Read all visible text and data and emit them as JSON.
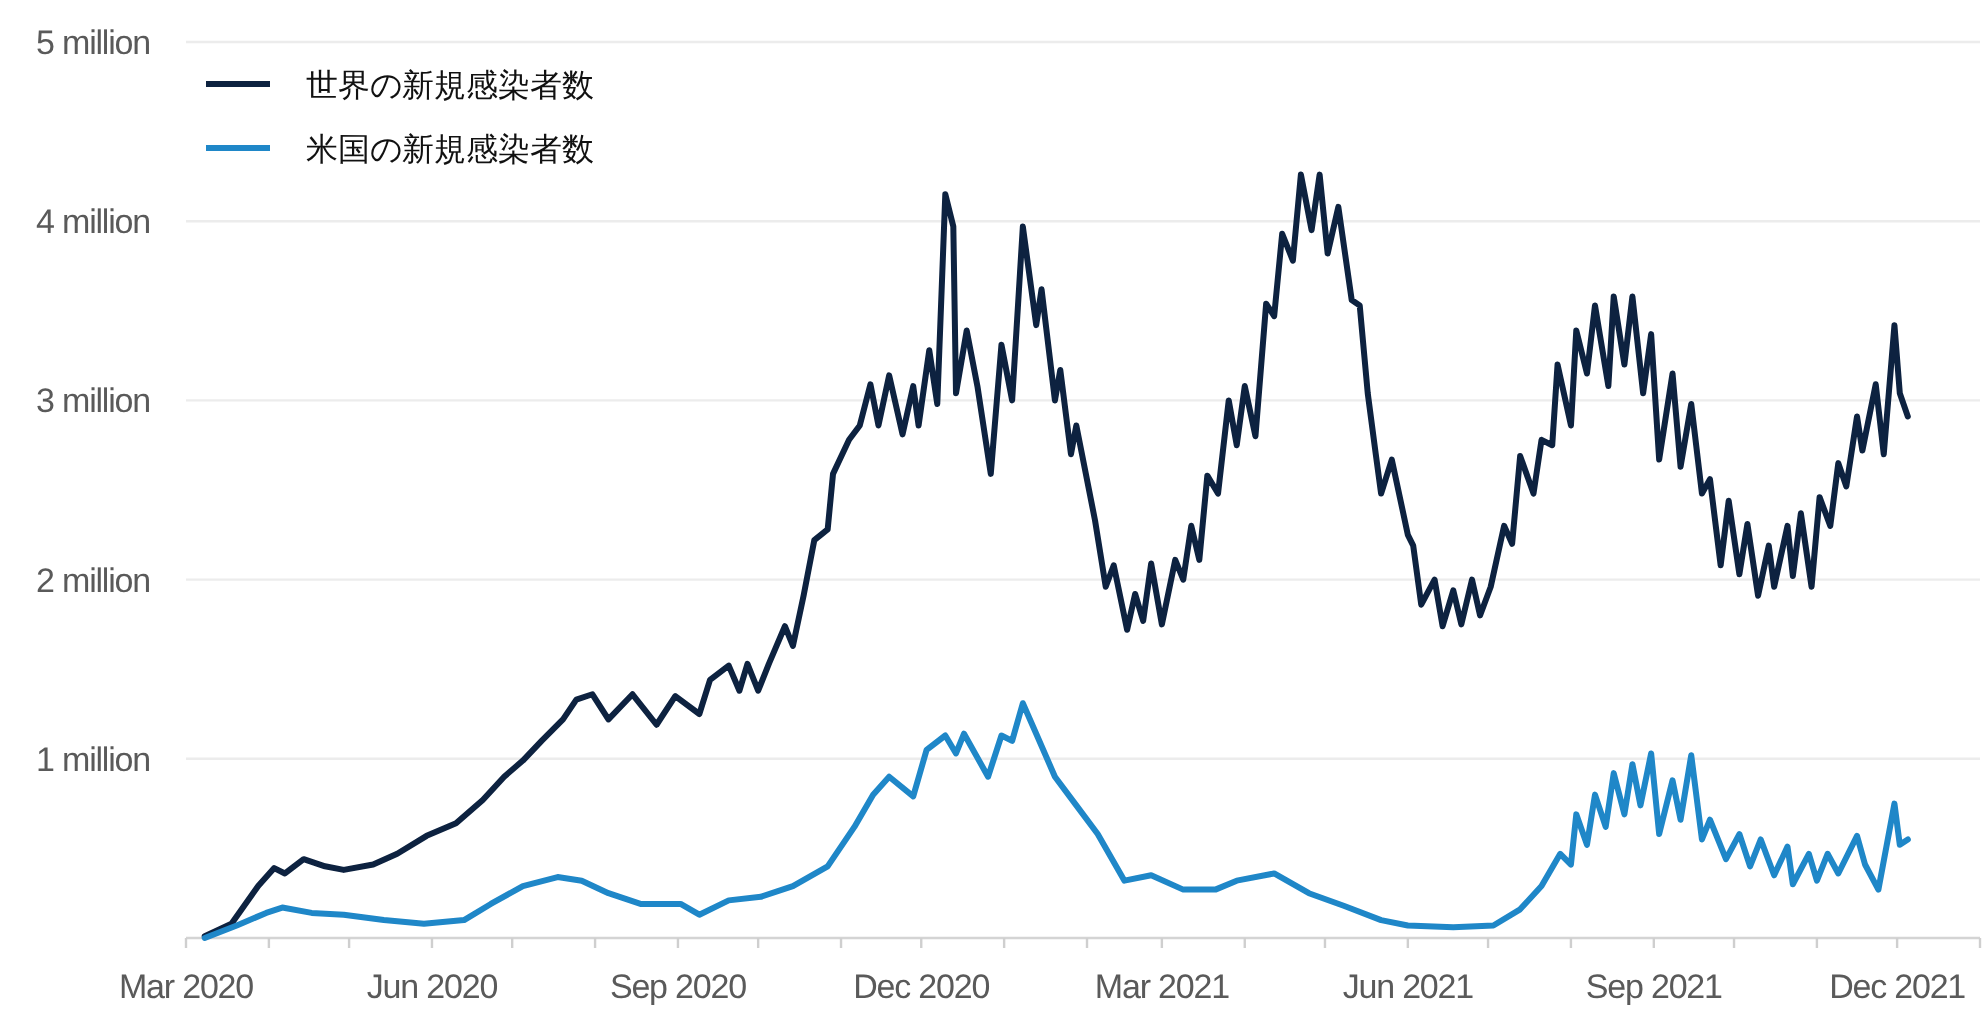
{
  "chart_data": {
    "type": "line",
    "xlim": [
      "2020-03-01",
      "2022-01-01"
    ],
    "ylim": [
      0,
      5000000
    ],
    "xticks": [
      {
        "value": "2020-03-01",
        "label": "Mar 2020"
      },
      {
        "value": "2020-04-01",
        "label": null
      },
      {
        "value": "2020-05-01",
        "label": null
      },
      {
        "value": "2020-06-01",
        "label": "Jun 2020"
      },
      {
        "value": "2020-07-01",
        "label": null
      },
      {
        "value": "2020-08-01",
        "label": null
      },
      {
        "value": "2020-09-01",
        "label": "Sep 2020"
      },
      {
        "value": "2020-10-01",
        "label": null
      },
      {
        "value": "2020-11-01",
        "label": null
      },
      {
        "value": "2020-12-01",
        "label": "Dec 2020"
      },
      {
        "value": "2021-01-01",
        "label": null
      },
      {
        "value": "2021-02-01",
        "label": null
      },
      {
        "value": "2021-03-01",
        "label": "Mar 2021"
      },
      {
        "value": "2021-04-01",
        "label": null
      },
      {
        "value": "2021-05-01",
        "label": null
      },
      {
        "value": "2021-06-01",
        "label": "Jun 2021"
      },
      {
        "value": "2021-07-01",
        "label": null
      },
      {
        "value": "2021-08-01",
        "label": null
      },
      {
        "value": "2021-09-01",
        "label": "Sep 2021"
      },
      {
        "value": "2021-10-01",
        "label": null
      },
      {
        "value": "2021-11-01",
        "label": null
      },
      {
        "value": "2021-12-01",
        "label": "Dec 2021"
      },
      {
        "value": "2022-01-01",
        "label": null
      }
    ],
    "yticks": [
      {
        "value": 1000000,
        "label": "1 million"
      },
      {
        "value": 2000000,
        "label": "2 million"
      },
      {
        "value": 3000000,
        "label": "3 million"
      },
      {
        "value": 4000000,
        "label": "4 million"
      },
      {
        "value": 5000000,
        "label": "5 million"
      }
    ],
    "grid": "y",
    "legend": "top left",
    "series": [
      {
        "name": "世界の新規感染者数",
        "color": "#0d2240",
        "x": [
          "2020-03-08",
          "2020-03-18",
          "2020-03-28",
          "2020-04-03",
          "2020-04-07",
          "2020-04-14",
          "2020-04-22",
          "2020-04-29",
          "2020-05-10",
          "2020-05-19",
          "2020-05-30",
          "2020-06-10",
          "2020-06-20",
          "2020-06-28",
          "2020-07-05",
          "2020-07-12",
          "2020-07-20",
          "2020-07-25",
          "2020-07-31",
          "2020-08-06",
          "2020-08-15",
          "2020-08-24",
          "2020-08-31",
          "2020-09-09",
          "2020-09-13",
          "2020-09-20",
          "2020-09-24",
          "2020-09-27",
          "2020-10-01",
          "2020-10-05",
          "2020-10-11",
          "2020-10-14",
          "2020-10-18",
          "2020-10-22",
          "2020-10-27",
          "2020-10-29",
          "2020-11-04",
          "2020-11-08",
          "2020-11-12",
          "2020-11-15",
          "2020-11-19",
          "2020-11-24",
          "2020-11-28",
          "2020-11-30",
          "2020-12-04",
          "2020-12-07",
          "2020-12-10",
          "2020-12-13",
          "2020-12-14",
          "2020-12-18",
          "2020-12-22",
          "2020-12-27",
          "2020-12-31",
          "2021-01-04",
          "2021-01-08",
          "2021-01-13",
          "2021-01-15",
          "2021-01-20",
          "2021-01-22",
          "2021-01-26",
          "2021-01-28",
          "2021-02-04",
          "2021-02-08",
          "2021-02-11",
          "2021-02-16",
          "2021-02-19",
          "2021-02-22",
          "2021-02-25",
          "2021-03-01",
          "2021-03-06",
          "2021-03-09",
          "2021-03-12",
          "2021-03-15",
          "2021-03-18",
          "2021-03-22",
          "2021-03-26",
          "2021-03-29",
          "2021-04-01",
          "2021-04-05",
          "2021-04-09",
          "2021-04-12",
          "2021-04-15",
          "2021-04-19",
          "2021-04-22",
          "2021-04-26",
          "2021-04-29",
          "2021-05-02",
          "2021-05-06",
          "2021-05-11",
          "2021-05-14",
          "2021-05-17",
          "2021-05-20",
          "2021-05-22",
          "2021-05-26",
          "2021-06-01",
          "2021-06-03",
          "2021-06-06",
          "2021-06-11",
          "2021-06-14",
          "2021-06-18",
          "2021-06-21",
          "2021-06-25",
          "2021-06-28",
          "2021-07-02",
          "2021-07-07",
          "2021-07-10",
          "2021-07-13",
          "2021-07-18",
          "2021-07-21",
          "2021-07-25",
          "2021-07-27",
          "2021-08-01",
          "2021-08-03",
          "2021-08-07",
          "2021-08-10",
          "2021-08-15",
          "2021-08-17",
          "2021-08-21",
          "2021-08-24",
          "2021-08-28",
          "2021-08-31",
          "2021-09-03",
          "2021-09-08",
          "2021-09-11",
          "2021-09-15",
          "2021-09-19",
          "2021-09-22",
          "2021-09-26",
          "2021-09-29",
          "2021-10-03",
          "2021-10-06",
          "2021-10-10",
          "2021-10-14",
          "2021-10-16",
          "2021-10-21",
          "2021-10-23",
          "2021-10-26",
          "2021-10-30",
          "2021-11-02",
          "2021-11-06",
          "2021-11-09",
          "2021-11-12",
          "2021-11-16",
          "2021-11-18",
          "2021-11-23",
          "2021-11-26",
          "2021-11-30",
          "2021-12-02",
          "2021-12-05"
        ],
        "values": [
          10000,
          80000,
          290000,
          390000,
          360000,
          440000,
          400000,
          380000,
          410000,
          470000,
          570000,
          640000,
          770000,
          900000,
          990000,
          1100000,
          1220000,
          1330000,
          1360000,
          1220000,
          1360000,
          1190000,
          1350000,
          1250000,
          1440000,
          1520000,
          1380000,
          1530000,
          1380000,
          1530000,
          1740000,
          1630000,
          1910000,
          2220000,
          2280000,
          2590000,
          2780000,
          2860000,
          3090000,
          2860000,
          3140000,
          2810000,
          3080000,
          2860000,
          3280000,
          2980000,
          4150000,
          3970000,
          3040000,
          3390000,
          3080000,
          2590000,
          3310000,
          3000000,
          3970000,
          3420000,
          3620000,
          3000000,
          3170000,
          2700000,
          2860000,
          2330000,
          1960000,
          2080000,
          1720000,
          1920000,
          1770000,
          2090000,
          1750000,
          2110000,
          2000000,
          2300000,
          2110000,
          2580000,
          2480000,
          3000000,
          2750000,
          3080000,
          2800000,
          3540000,
          3470000,
          3930000,
          3780000,
          4260000,
          3950000,
          4260000,
          3820000,
          4080000,
          3560000,
          3530000,
          3040000,
          2700000,
          2480000,
          2670000,
          2250000,
          2190000,
          1860000,
          2000000,
          1740000,
          1940000,
          1750000,
          2000000,
          1800000,
          1960000,
          2300000,
          2200000,
          2690000,
          2480000,
          2780000,
          2750000,
          3200000,
          2860000,
          3390000,
          3150000,
          3530000,
          3080000,
          3580000,
          3200000,
          3580000,
          3040000,
          3370000,
          2670000,
          3150000,
          2630000,
          2980000,
          2480000,
          2560000,
          2080000,
          2440000,
          2030000,
          2310000,
          1910000,
          2190000,
          1960000,
          2300000,
          2020000,
          2370000,
          1960000,
          2460000,
          2300000,
          2650000,
          2520000,
          2910000,
          2720000,
          3090000,
          2700000,
          3420000,
          3040000,
          2910000
        ]
      },
      {
        "name": "米国の新規感染者数",
        "color": "#1f87c8",
        "x": [
          "2020-03-08",
          "2020-03-20",
          "2020-03-31",
          "2020-04-06",
          "2020-04-17",
          "2020-04-29",
          "2020-05-14",
          "2020-05-29",
          "2020-06-13",
          "2020-06-23",
          "2020-07-05",
          "2020-07-18",
          "2020-07-27",
          "2020-08-06",
          "2020-08-18",
          "2020-09-02",
          "2020-09-09",
          "2020-09-20",
          "2020-10-02",
          "2020-10-14",
          "2020-10-27",
          "2020-11-06",
          "2020-11-13",
          "2020-11-19",
          "2020-11-28",
          "2020-12-03",
          "2020-12-10",
          "2020-12-14",
          "2020-12-17",
          "2020-12-26",
          "2020-12-31",
          "2021-01-04",
          "2021-01-08",
          "2021-01-13",
          "2021-01-20",
          "2021-01-28",
          "2021-02-05",
          "2021-02-15",
          "2021-02-25",
          "2021-03-09",
          "2021-03-21",
          "2021-03-29",
          "2021-04-12",
          "2021-04-25",
          "2021-05-08",
          "2021-05-22",
          "2021-06-01",
          "2021-06-18",
          "2021-07-03",
          "2021-07-13",
          "2021-07-21",
          "2021-07-28",
          "2021-08-01",
          "2021-08-03",
          "2021-08-07",
          "2021-08-10",
          "2021-08-14",
          "2021-08-17",
          "2021-08-21",
          "2021-08-24",
          "2021-08-27",
          "2021-08-31",
          "2021-09-03",
          "2021-09-08",
          "2021-09-11",
          "2021-09-15",
          "2021-09-19",
          "2021-09-22",
          "2021-09-28",
          "2021-10-03",
          "2021-10-07",
          "2021-10-11",
          "2021-10-16",
          "2021-10-21",
          "2021-10-23",
          "2021-10-29",
          "2021-11-01",
          "2021-11-05",
          "2021-11-09",
          "2021-11-16",
          "2021-11-19",
          "2021-11-24",
          "2021-11-30",
          "2021-12-02",
          "2021-12-05"
        ],
        "values": [
          0,
          70000,
          140000,
          170000,
          140000,
          130000,
          100000,
          80000,
          100000,
          190000,
          290000,
          340000,
          320000,
          250000,
          190000,
          190000,
          130000,
          210000,
          230000,
          290000,
          400000,
          620000,
          800000,
          900000,
          790000,
          1050000,
          1130000,
          1030000,
          1140000,
          900000,
          1130000,
          1100000,
          1310000,
          1140000,
          900000,
          740000,
          580000,
          320000,
          350000,
          270000,
          270000,
          320000,
          360000,
          250000,
          180000,
          100000,
          70000,
          60000,
          70000,
          160000,
          290000,
          470000,
          410000,
          690000,
          520000,
          800000,
          620000,
          920000,
          690000,
          970000,
          740000,
          1030000,
          580000,
          880000,
          660000,
          1020000,
          550000,
          660000,
          440000,
          580000,
          400000,
          550000,
          350000,
          510000,
          300000,
          470000,
          320000,
          470000,
          360000,
          570000,
          410000,
          270000,
          750000,
          520000,
          550000
        ]
      }
    ]
  }
}
